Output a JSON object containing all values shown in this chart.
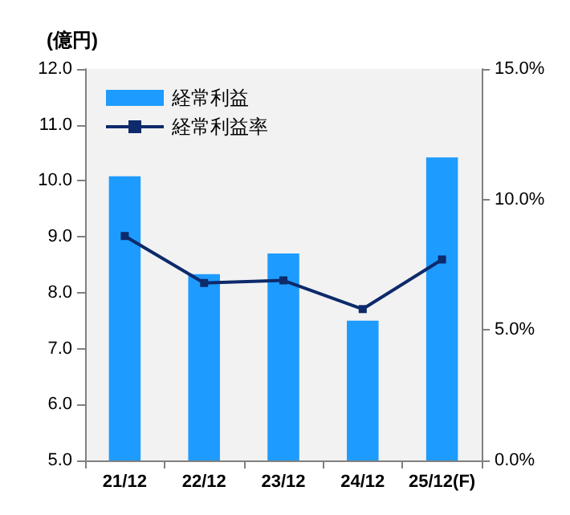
{
  "chart_data": {
    "type": "bar",
    "ylabel": "(億円)",
    "categories": [
      "21/12",
      "22/12",
      "23/12",
      "24/12",
      "25/12(F)"
    ],
    "series": [
      {
        "name": "経常利益",
        "color": "#1e9bff",
        "values": [
          10.08,
          8.33,
          8.7,
          7.5,
          10.42
        ]
      },
      {
        "name": "経常利益率",
        "type": "line",
        "axis": "y2",
        "color": "#0d2a6b",
        "marker": "square",
        "values": [
          8.6,
          6.8,
          6.9,
          5.8,
          7.7
        ]
      }
    ],
    "ylim": [
      5,
      12
    ],
    "yticks": [
      {
        "value": 5,
        "label": "5.0"
      },
      {
        "value": 6,
        "label": "6.0"
      },
      {
        "value": 7,
        "label": "7.0"
      },
      {
        "value": 8,
        "label": "8.0"
      },
      {
        "value": 9,
        "label": "9.0"
      },
      {
        "value": 10,
        "label": "10.0"
      },
      {
        "value": 11,
        "label": "11.0"
      },
      {
        "value": 12,
        "label": "12.0"
      }
    ],
    "y2lim": [
      0,
      15
    ],
    "y2ticks": [
      {
        "value": 0,
        "label": "0.0%"
      },
      {
        "value": 5,
        "label": "5.0%"
      },
      {
        "value": 10,
        "label": "10.0%"
      },
      {
        "value": 15,
        "label": "15.0%"
      }
    ],
    "legend": "top left",
    "grid": false
  }
}
